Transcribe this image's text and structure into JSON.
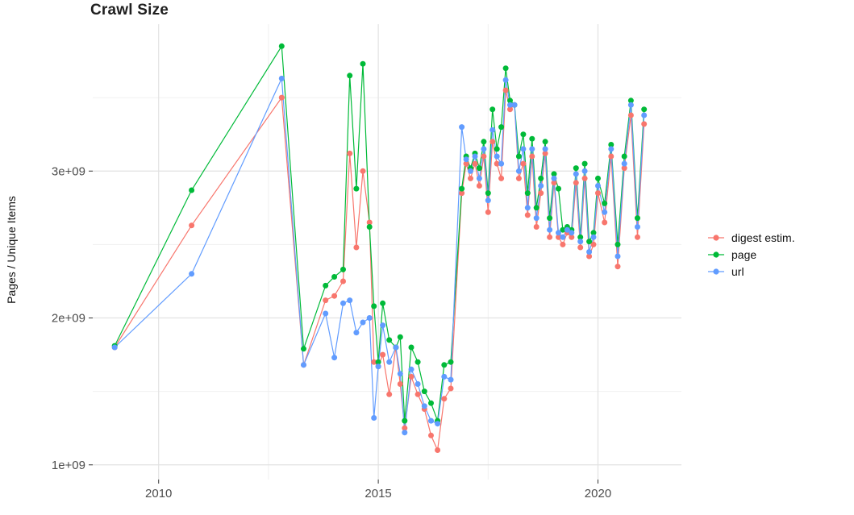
{
  "chart_data": {
    "type": "line",
    "title": "Crawl Size",
    "ylabel": "Pages / Unique Items",
    "xlabel": "",
    "grid": true,
    "legend_position": "right",
    "xlim": [
      2008.5,
      2021.9
    ],
    "ylim": [
      900000000.0,
      4000000000.0
    ],
    "x_ticks": [
      2010,
      2015,
      2020
    ],
    "x_tick_labels": [
      "2010",
      "2015",
      "2020"
    ],
    "x_minor_ticks": [
      2012.5,
      2017.5
    ],
    "y_ticks": [
      1000000000.0,
      2000000000.0,
      3000000000.0
    ],
    "y_tick_labels": [
      "1e+09",
      "2e+09",
      "3e+09"
    ],
    "y_minor_ticks": [
      1500000000.0,
      2500000000.0,
      3500000000.0
    ],
    "colors": {
      "digest": "#F8766D",
      "page": "#00BA38",
      "url": "#619CFF",
      "grid_major": "#e2e2e2",
      "grid_minor": "#f0f0f0",
      "tick_text": "#4d4d4d"
    },
    "x": [
      2009.0,
      2010.75,
      2012.8,
      2013.3,
      2013.8,
      2014.0,
      2014.2,
      2014.35,
      2014.5,
      2014.65,
      2014.8,
      2014.9,
      2015.0,
      2015.1,
      2015.25,
      2015.4,
      2015.5,
      2015.6,
      2015.75,
      2015.9,
      2016.05,
      2016.2,
      2016.35,
      2016.5,
      2016.65,
      2016.9,
      2017.0,
      2017.1,
      2017.2,
      2017.3,
      2017.4,
      2017.5,
      2017.6,
      2017.7,
      2017.8,
      2017.9,
      2018.0,
      2018.1,
      2018.2,
      2018.3,
      2018.4,
      2018.5,
      2018.6,
      2018.7,
      2018.8,
      2018.9,
      2019.0,
      2019.1,
      2019.2,
      2019.3,
      2019.4,
      2019.5,
      2019.6,
      2019.7,
      2019.8,
      2019.9,
      2020.0,
      2020.15,
      2020.3,
      2020.45,
      2020.6,
      2020.75,
      2020.9,
      2021.05
    ],
    "series": [
      {
        "name": "digest estim.",
        "color": "#F8766D",
        "values": [
          1800000000.0,
          2630000000.0,
          3500000000.0,
          1680000000.0,
          2120000000.0,
          2150000000.0,
          2250000000.0,
          3120000000.0,
          2480000000.0,
          3000000000.0,
          2650000000.0,
          1700000000.0,
          1670000000.0,
          1750000000.0,
          1480000000.0,
          1800000000.0,
          1550000000.0,
          1250000000.0,
          1600000000.0,
          1480000000.0,
          1380000000.0,
          1200000000.0,
          1100000000.0,
          1450000000.0,
          1520000000.0,
          2850000000.0,
          3050000000.0,
          2950000000.0,
          3050000000.0,
          2900000000.0,
          3100000000.0,
          2720000000.0,
          3200000000.0,
          3050000000.0,
          2950000000.0,
          3550000000.0,
          3420000000.0,
          3450000000.0,
          2950000000.0,
          3050000000.0,
          2700000000.0,
          3100000000.0,
          2620000000.0,
          2850000000.0,
          3120000000.0,
          2550000000.0,
          2920000000.0,
          2550000000.0,
          2500000000.0,
          2580000000.0,
          2550000000.0,
          2920000000.0,
          2480000000.0,
          2950000000.0,
          2420000000.0,
          2500000000.0,
          2850000000.0,
          2650000000.0,
          3100000000.0,
          2350000000.0,
          3020000000.0,
          3380000000.0,
          2550000000.0,
          3320000000.0
        ]
      },
      {
        "name": "page",
        "color": "#00BA38",
        "values": [
          1810000000.0,
          2870000000.0,
          3850000000.0,
          1790000000.0,
          2220000000.0,
          2280000000.0,
          2330000000.0,
          3650000000.0,
          2880000000.0,
          3730000000.0,
          2620000000.0,
          2080000000.0,
          1700000000.0,
          2100000000.0,
          1850000000.0,
          1800000000.0,
          1870000000.0,
          1300000000.0,
          1800000000.0,
          1700000000.0,
          1500000000.0,
          1420000000.0,
          1300000000.0,
          1680000000.0,
          1700000000.0,
          2880000000.0,
          3100000000.0,
          3020000000.0,
          3120000000.0,
          3020000000.0,
          3200000000.0,
          2850000000.0,
          3420000000.0,
          3150000000.0,
          3300000000.0,
          3700000000.0,
          3480000000.0,
          3450000000.0,
          3100000000.0,
          3250000000.0,
          2850000000.0,
          3220000000.0,
          2750000000.0,
          2950000000.0,
          3200000000.0,
          2680000000.0,
          2980000000.0,
          2880000000.0,
          2600000000.0,
          2620000000.0,
          2600000000.0,
          3020000000.0,
          2550000000.0,
          3050000000.0,
          2520000000.0,
          2580000000.0,
          2950000000.0,
          2780000000.0,
          3180000000.0,
          2500000000.0,
          3100000000.0,
          3480000000.0,
          2680000000.0,
          3420000000.0
        ]
      },
      {
        "name": "url",
        "color": "#619CFF",
        "values": [
          1800000000.0,
          2300000000.0,
          3630000000.0,
          1680000000.0,
          2030000000.0,
          1730000000.0,
          2100000000.0,
          2120000000.0,
          1900000000.0,
          1970000000.0,
          2000000000.0,
          1320000000.0,
          1670000000.0,
          1950000000.0,
          1700000000.0,
          1800000000.0,
          1620000000.0,
          1220000000.0,
          1650000000.0,
          1550000000.0,
          1400000000.0,
          1300000000.0,
          1280000000.0,
          1600000000.0,
          1580000000.0,
          3300000000.0,
          3080000000.0,
          3000000000.0,
          3100000000.0,
          2950000000.0,
          3150000000.0,
          2800000000.0,
          3280000000.0,
          3100000000.0,
          3050000000.0,
          3620000000.0,
          3450000000.0,
          3450000000.0,
          3000000000.0,
          3150000000.0,
          2750000000.0,
          3150000000.0,
          2680000000.0,
          2900000000.0,
          3150000000.0,
          2600000000.0,
          2950000000.0,
          2580000000.0,
          2550000000.0,
          2600000000.0,
          2580000000.0,
          2980000000.0,
          2520000000.0,
          3000000000.0,
          2450000000.0,
          2550000000.0,
          2900000000.0,
          2720000000.0,
          3150000000.0,
          2420000000.0,
          3050000000.0,
          3450000000.0,
          2620000000.0,
          3380000000.0
        ]
      }
    ]
  }
}
